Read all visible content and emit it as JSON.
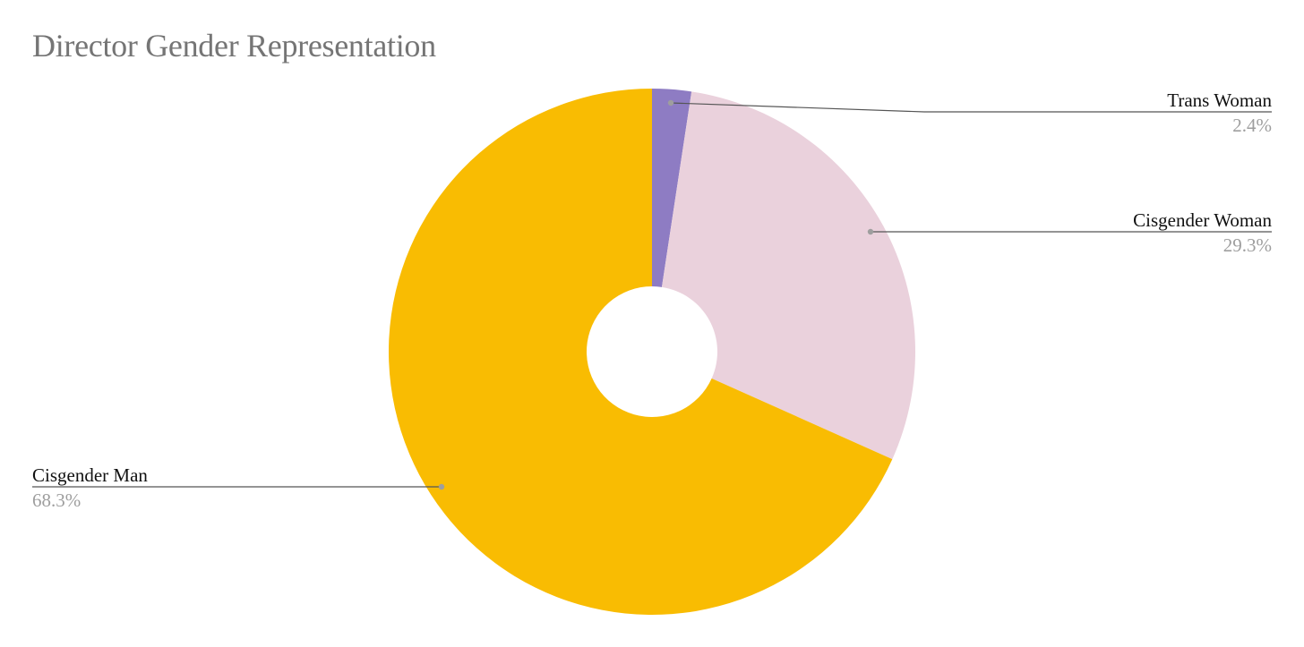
{
  "chart_data": {
    "type": "pie",
    "title": "Director Gender Representation",
    "donut": true,
    "slices": [
      {
        "label": "Trans Woman",
        "value": 2.4,
        "value_label": "2.4%",
        "color": "#8e7cc3"
      },
      {
        "label": "Cisgender Woman",
        "value": 29.3,
        "value_label": "29.3%",
        "color": "#ead1dc"
      },
      {
        "label": "Cisgender Man",
        "value": 68.3,
        "value_label": "68.3%",
        "color": "#f9bc02"
      }
    ],
    "legend": "none"
  }
}
